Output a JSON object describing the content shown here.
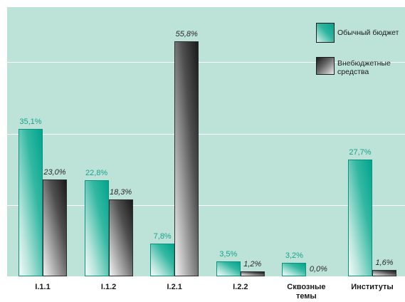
{
  "chart_data": {
    "type": "bar",
    "categories": [
      "I.1.1",
      "I.1.2",
      "I.2.1",
      "I.2.2",
      "Сквозные темы",
      "Институты"
    ],
    "series": [
      {
        "name": "Обычный бюджет",
        "values": [
          35.1,
          22.8,
          7.8,
          3.5,
          3.2,
          27.7
        ],
        "labels": [
          "35,1%",
          "22,8%",
          "7,8%",
          "3,5%",
          "3,2%",
          "27,7%"
        ],
        "color": "#00a48d"
      },
      {
        "name": "Внебюджетные средства",
        "values": [
          23.0,
          18.3,
          55.8,
          1.2,
          0.0,
          1.6
        ],
        "labels": [
          "23,0%",
          "18,3%",
          "55,8%",
          "1,2%",
          "0,0%",
          "1,6%"
        ],
        "color": "#1a1a1a"
      }
    ],
    "ylim": [
      0,
      64
    ],
    "grid": true,
    "legend": "top-right",
    "background_color": "#bde3d9"
  }
}
